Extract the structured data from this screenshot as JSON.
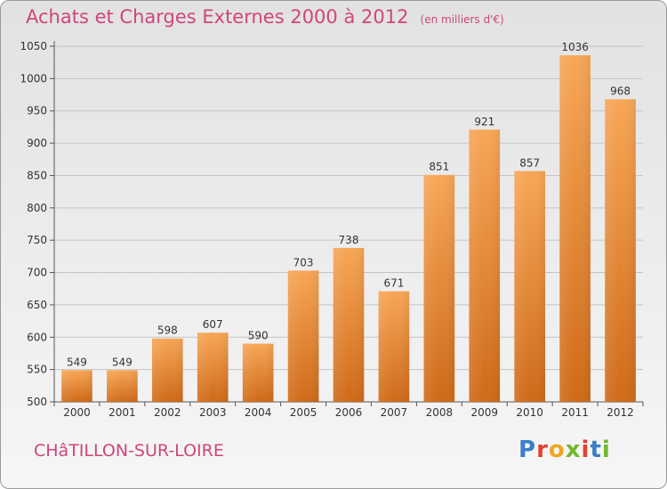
{
  "title": "Achats et Charges Externes 2000 à 2012",
  "unit": "(en milliers d'€)",
  "town": "CHâTILLON-SUR-LOIRE",
  "logo": {
    "letters": [
      "P",
      "r",
      "o",
      "x",
      "i",
      "t",
      "i"
    ],
    "colors": [
      "#3a7fc7",
      "#e2412f",
      "#f1a51d",
      "#74b72e",
      "#e2412f",
      "#3a7fc7",
      "#74b72e"
    ]
  },
  "chart_data": {
    "type": "bar",
    "categories": [
      "2000",
      "2001",
      "2002",
      "2003",
      "2004",
      "2005",
      "2006",
      "2007",
      "2008",
      "2009",
      "2010",
      "2011",
      "2012"
    ],
    "values": [
      549,
      549,
      598,
      607,
      590,
      703,
      738,
      671,
      851,
      921,
      857,
      1036,
      968
    ],
    "ylim": [
      500,
      1050
    ],
    "yticks": [
      500,
      550,
      600,
      650,
      700,
      750,
      800,
      850,
      900,
      950,
      1000,
      1050
    ],
    "grid": true,
    "bar_color": "#f08e30"
  }
}
